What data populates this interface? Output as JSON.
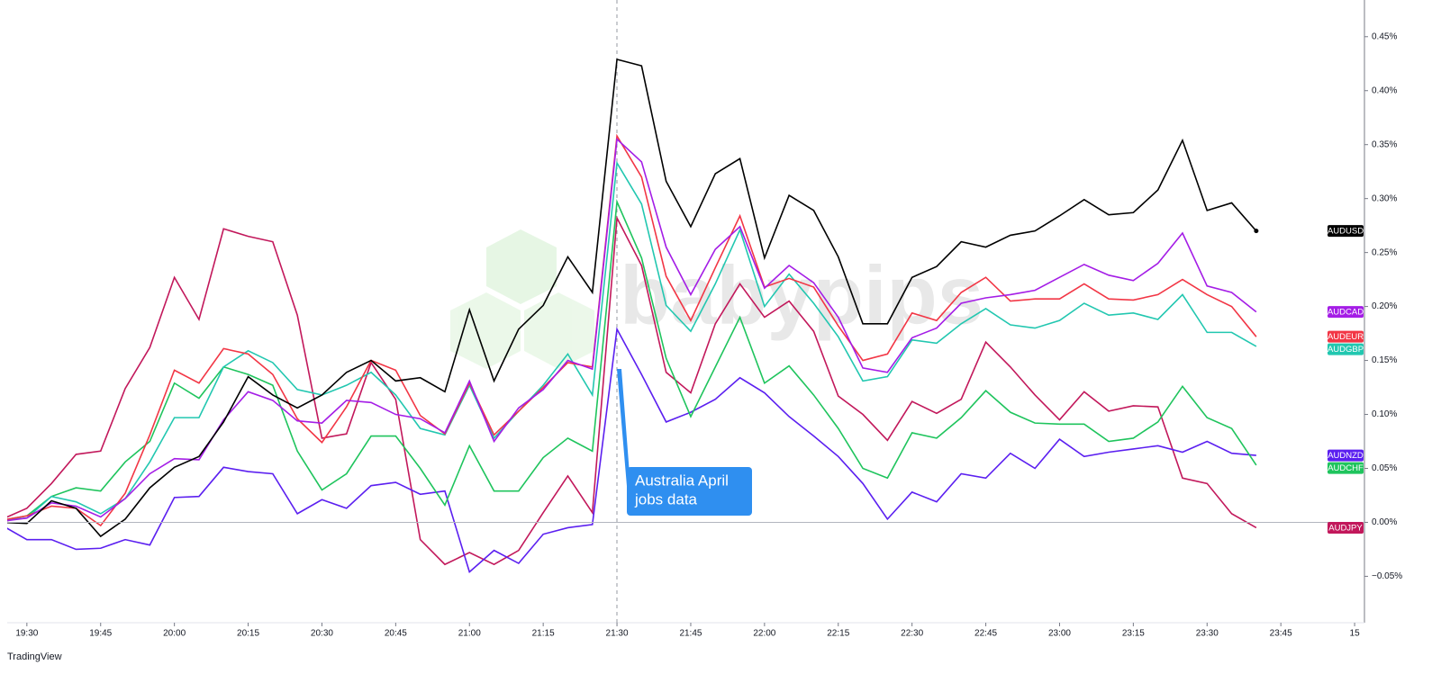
{
  "chart_data": {
    "type": "line",
    "watermark": "babypips",
    "brand": "TradingView",
    "annotation": [
      "Australia April",
      "jobs data"
    ],
    "x": [
      "19:25",
      "19:30",
      "19:35",
      "19:40",
      "19:45",
      "19:50",
      "19:55",
      "20:00",
      "20:05",
      "20:10",
      "20:15",
      "20:20",
      "20:25",
      "20:30",
      "20:35",
      "20:40",
      "20:45",
      "20:50",
      "20:55",
      "21:00",
      "21:05",
      "21:10",
      "21:15",
      "21:20",
      "21:25",
      "21:30",
      "21:35",
      "21:40",
      "21:45",
      "21:50",
      "21:55",
      "22:00",
      "22:05",
      "22:10",
      "22:15",
      "22:20",
      "22:25",
      "22:30",
      "22:35",
      "22:40",
      "22:45",
      "22:50",
      "22:55",
      "23:00",
      "23:05",
      "23:10",
      "23:15",
      "23:20",
      "23:25",
      "23:30",
      "23:35",
      "23:40"
    ],
    "xlim": [
      "19:26",
      "00:02"
    ],
    "xticks": [
      "19:30",
      "19:45",
      "20:00",
      "20:15",
      "20:30",
      "20:45",
      "21:00",
      "21:15",
      "21:30",
      "21:45",
      "22:00",
      "22:15",
      "22:30",
      "22:45",
      "23:00",
      "23:15",
      "23:30",
      "23:45",
      {
        "value": "24:00",
        "label": "15"
      }
    ],
    "ylim": [
      -0.093,
      0.484
    ],
    "yticks": [
      {
        "value": -0.05,
        "label": "−0.05%"
      },
      {
        "value": 0,
        "label": "0.00%"
      },
      {
        "value": 0.05,
        "label": "0.05%"
      },
      {
        "value": 0.1,
        "label": "0.10%"
      },
      {
        "value": 0.15,
        "label": "0.15%"
      },
      {
        "value": 0.2,
        "label": "0.20%"
      },
      {
        "value": 0.25,
        "label": "0.25%"
      },
      {
        "value": 0.3,
        "label": "0.30%"
      },
      {
        "value": 0.35,
        "label": "0.35%"
      },
      {
        "value": 0.4,
        "label": "0.40%"
      },
      {
        "value": 0.45,
        "label": "0.45%"
      }
    ],
    "series": [
      {
        "name": "AUDJPY",
        "color": "#c2185b",
        "values": [
          0.003,
          0.013,
          0.036,
          0.063,
          0.066,
          0.124,
          0.162,
          0.227,
          0.188,
          0.272,
          0.265,
          0.26,
          0.192,
          0.078,
          0.082,
          0.148,
          0.114,
          -0.016,
          -0.039,
          -0.028,
          -0.039,
          -0.026,
          0.009,
          0.043,
          0.009,
          0.282,
          0.238,
          0.139,
          0.12,
          0.184,
          0.221,
          0.19,
          0.205,
          0.177,
          0.117,
          0.1,
          0.076,
          0.112,
          0.101,
          0.114,
          0.167,
          0.144,
          0.118,
          0.095,
          0.121,
          0.103,
          0.108,
          0.107,
          0.041,
          0.036,
          0.008,
          -0.005
        ]
      },
      {
        "name": "AUDNZD",
        "color": "#5b1ff0",
        "values": [
          -0.003,
          -0.016,
          -0.016,
          -0.025,
          -0.024,
          -0.016,
          -0.021,
          0.023,
          0.024,
          0.051,
          0.047,
          0.045,
          0.008,
          0.021,
          0.013,
          0.034,
          0.037,
          0.026,
          0.029,
          -0.046,
          -0.026,
          -0.038,
          -0.011,
          -0.005,
          -0.002,
          0.179,
          0.137,
          0.093,
          0.102,
          0.114,
          0.134,
          0.12,
          0.098,
          0.08,
          0.061,
          0.036,
          0.003,
          0.028,
          0.019,
          0.045,
          0.041,
          0.064,
          0.05,
          0.077,
          0.061,
          0.065,
          0.068,
          0.071,
          0.065,
          0.075,
          0.064,
          0.062
        ]
      },
      {
        "name": "AUDCHF",
        "color": "#1fc45d",
        "values": [
          0.002,
          0.006,
          0.024,
          0.032,
          0.029,
          0.056,
          0.075,
          0.129,
          0.115,
          0.144,
          0.137,
          0.127,
          0.066,
          0.03,
          0.045,
          0.08,
          0.08,
          0.05,
          0.016,
          0.071,
          0.029,
          0.029,
          0.06,
          0.078,
          0.066,
          0.297,
          0.245,
          0.152,
          0.098,
          0.144,
          0.19,
          0.129,
          0.145,
          0.118,
          0.087,
          0.05,
          0.041,
          0.083,
          0.078,
          0.097,
          0.122,
          0.102,
          0.092,
          0.091,
          0.091,
          0.075,
          0.078,
          0.093,
          0.126,
          0.097,
          0.087,
          0.053
        ]
      },
      {
        "name": "AUDGBP",
        "color": "#22c7b0",
        "values": [
          0.002,
          0.004,
          0.024,
          0.019,
          0.008,
          0.022,
          0.056,
          0.097,
          0.097,
          0.144,
          0.159,
          0.148,
          0.123,
          0.118,
          0.127,
          0.139,
          0.118,
          0.087,
          0.081,
          0.127,
          0.078,
          0.103,
          0.127,
          0.156,
          0.118,
          0.333,
          0.295,
          0.201,
          0.177,
          0.221,
          0.271,
          0.2,
          0.23,
          0.203,
          0.172,
          0.131,
          0.135,
          0.169,
          0.166,
          0.184,
          0.198,
          0.183,
          0.18,
          0.187,
          0.203,
          0.192,
          0.194,
          0.188,
          0.211,
          0.176,
          0.176,
          0.163
        ]
      },
      {
        "name": "AUDEUR",
        "color": "#f23645",
        "values": [
          0.002,
          0.006,
          0.015,
          0.013,
          -0.003,
          0.027,
          0.081,
          0.141,
          0.129,
          0.161,
          0.156,
          0.137,
          0.096,
          0.074,
          0.107,
          0.15,
          0.141,
          0.099,
          0.082,
          0.129,
          0.081,
          0.103,
          0.125,
          0.148,
          0.144,
          0.358,
          0.32,
          0.228,
          0.187,
          0.236,
          0.284,
          0.218,
          0.226,
          0.218,
          0.182,
          0.15,
          0.156,
          0.194,
          0.187,
          0.213,
          0.227,
          0.205,
          0.207,
          0.207,
          0.221,
          0.207,
          0.206,
          0.211,
          0.225,
          0.211,
          0.2,
          0.172
        ]
      },
      {
        "name": "AUDCAD",
        "color": "#a41de6",
        "values": [
          0.001,
          0.004,
          0.018,
          0.015,
          0.005,
          0.022,
          0.045,
          0.059,
          0.058,
          0.095,
          0.121,
          0.113,
          0.094,
          0.092,
          0.113,
          0.111,
          0.1,
          0.096,
          0.083,
          0.131,
          0.075,
          0.106,
          0.123,
          0.15,
          0.142,
          0.355,
          0.334,
          0.255,
          0.211,
          0.253,
          0.274,
          0.217,
          0.238,
          0.222,
          0.19,
          0.143,
          0.139,
          0.171,
          0.18,
          0.203,
          0.208,
          0.211,
          0.215,
          0.227,
          0.239,
          0.229,
          0.224,
          0.24,
          0.268,
          0.219,
          0.213,
          0.195
        ]
      },
      {
        "name": "AUDUSD",
        "color": "#000000",
        "values": [
          0,
          -0.001,
          0.02,
          0.013,
          -0.013,
          0.003,
          0.032,
          0.051,
          0.061,
          0.093,
          0.135,
          0.118,
          0.106,
          0.118,
          0.139,
          0.15,
          0.131,
          0.134,
          0.121,
          0.197,
          0.131,
          0.179,
          0.201,
          0.246,
          0.213,
          0.429,
          0.423,
          0.316,
          0.274,
          0.323,
          0.337,
          0.245,
          0.303,
          0.289,
          0.246,
          0.184,
          0.184,
          0.227,
          0.237,
          0.26,
          0.255,
          0.266,
          0.27,
          0.284,
          0.299,
          0.285,
          0.287,
          0.308,
          0.354,
          0.289,
          0.296,
          0.27
        ]
      }
    ]
  }
}
